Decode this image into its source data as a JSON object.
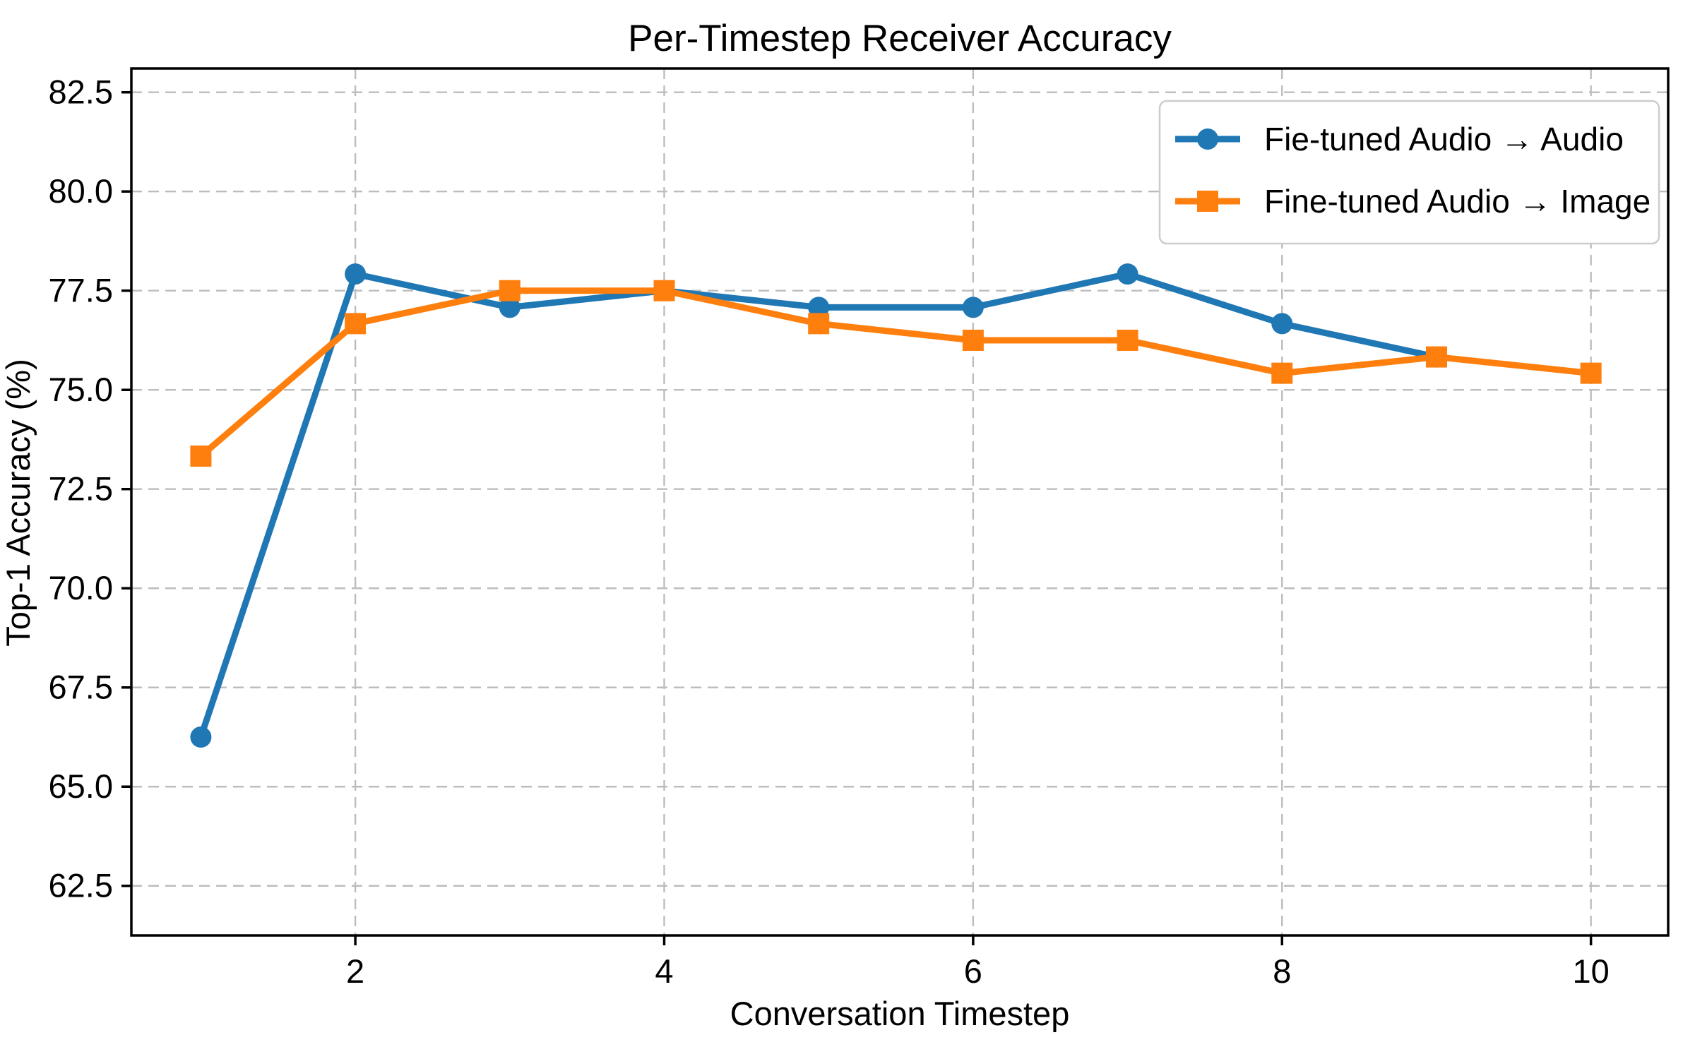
{
  "chart_data": {
    "type": "line",
    "title": "Per-Timestep Receiver Accuracy",
    "xlabel": "Conversation Timestep",
    "ylabel": "Top-1 Accuracy (%)",
    "xlim": [
      0.55,
      10.5
    ],
    "ylim": [
      61.25,
      83.1
    ],
    "grid": true,
    "grid_color": "#bdbdbd",
    "legend_position": "upper right",
    "legend_border_color": "#cccccc",
    "xticks": [
      {
        "v": 2,
        "label": "2"
      },
      {
        "v": 4,
        "label": "4"
      },
      {
        "v": 6,
        "label": "6"
      },
      {
        "v": 8,
        "label": "8"
      },
      {
        "v": 10,
        "label": "10"
      }
    ],
    "yticks": [
      {
        "v": 82.5,
        "label": "82.5"
      },
      {
        "v": 80.0,
        "label": "80.0"
      },
      {
        "v": 77.5,
        "label": "77.5"
      },
      {
        "v": 75.0,
        "label": "75.0"
      },
      {
        "v": 72.5,
        "label": "72.5"
      },
      {
        "v": 70.0,
        "label": "70.0"
      },
      {
        "v": 67.5,
        "label": "67.5"
      },
      {
        "v": 65.0,
        "label": "65.0"
      },
      {
        "v": 62.5,
        "label": "62.5"
      }
    ],
    "series": [
      {
        "name": "Fie-tuned Audio → Audio",
        "color": "#1f77b4",
        "marker": "circle",
        "x": [
          1,
          2,
          3,
          4,
          5,
          6,
          7,
          8,
          9
        ],
        "y": [
          66.25,
          77.92,
          77.08,
          77.5,
          77.08,
          77.08,
          77.92,
          76.67,
          75.83
        ]
      },
      {
        "name": "Fine-tuned Audio → Image",
        "color": "#ff7f0e",
        "marker": "square",
        "x": [
          1,
          2,
          3,
          4,
          5,
          6,
          7,
          8,
          9,
          10
        ],
        "y": [
          73.33,
          76.67,
          77.5,
          77.5,
          76.67,
          76.25,
          76.25,
          75.42,
          75.83,
          75.42
        ]
      }
    ]
  }
}
